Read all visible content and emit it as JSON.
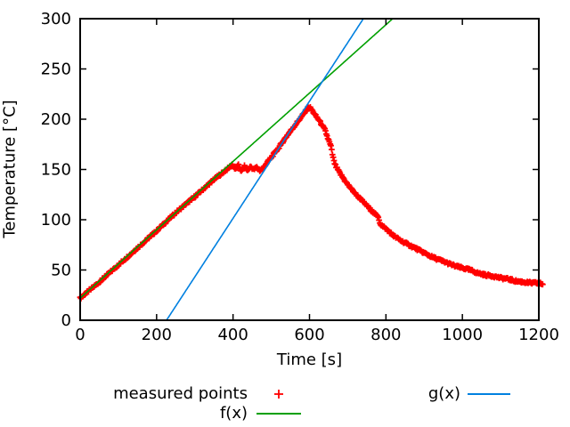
{
  "chart_data": {
    "type": "scatter",
    "title": "",
    "xlabel": "Time [s]",
    "ylabel": "Temperature [°C]",
    "xlim": [
      0,
      1200
    ],
    "ylim": [
      0,
      300
    ],
    "xticks": [
      0,
      200,
      400,
      600,
      800,
      1000,
      1200
    ],
    "yticks": [
      0,
      50,
      100,
      150,
      200,
      250,
      300
    ],
    "grid": false,
    "legend_position": "below-plot",
    "axis_color": "#000000",
    "series": [
      {
        "name": "measured points",
        "type": "points",
        "marker": "plus",
        "color": "#ff0000",
        "sampling_step_s": 2,
        "points": [
          [
            0,
            22
          ],
          [
            50,
            38
          ],
          [
            100,
            55
          ],
          [
            150,
            72
          ],
          [
            200,
            89
          ],
          [
            250,
            107
          ],
          [
            300,
            123
          ],
          [
            350,
            140
          ],
          [
            390,
            152
          ],
          [
            398,
            155
          ],
          [
            406,
            150
          ],
          [
            414,
            154
          ],
          [
            422,
            148
          ],
          [
            430,
            153
          ],
          [
            438,
            149
          ],
          [
            446,
            153
          ],
          [
            454,
            150
          ],
          [
            462,
            152
          ],
          [
            470,
            149
          ],
          [
            478,
            151
          ],
          [
            483,
            154
          ],
          [
            500,
            162
          ],
          [
            520,
            172
          ],
          [
            540,
            183
          ],
          [
            560,
            193
          ],
          [
            580,
            203
          ],
          [
            590,
            208
          ],
          [
            597,
            212
          ],
          [
            603,
            211
          ],
          [
            608,
            208
          ],
          [
            615,
            204
          ],
          [
            625,
            199
          ],
          [
            633,
            194
          ],
          [
            641,
            189
          ],
          [
            648,
            181
          ],
          [
            656,
            173
          ],
          [
            660,
            165
          ],
          [
            664,
            158
          ],
          [
            669,
            153
          ],
          [
            680,
            146
          ],
          [
            700,
            135
          ],
          [
            720,
            126
          ],
          [
            740,
            118
          ],
          [
            760,
            110
          ],
          [
            776,
            104
          ],
          [
            780,
            103
          ],
          [
            785,
            96
          ],
          [
            790,
            94
          ],
          [
            800,
            91
          ],
          [
            820,
            84
          ],
          [
            840,
            79
          ],
          [
            860,
            75
          ],
          [
            880,
            71
          ],
          [
            900,
            67
          ],
          [
            920,
            63
          ],
          [
            940,
            60
          ],
          [
            960,
            57
          ],
          [
            980,
            54
          ],
          [
            1000,
            52
          ],
          [
            1020,
            50
          ],
          [
            1040,
            47
          ],
          [
            1060,
            45
          ],
          [
            1080,
            44
          ],
          [
            1100,
            42
          ],
          [
            1120,
            41
          ],
          [
            1140,
            39
          ],
          [
            1160,
            38
          ],
          [
            1180,
            37
          ],
          [
            1200,
            37
          ],
          [
            1210,
            36
          ]
        ]
      },
      {
        "name": "f(x)",
        "type": "line",
        "color": "#00a000",
        "slope": 0.34,
        "intercept": 22
      },
      {
        "name": "g(x)",
        "type": "line",
        "color": "#0080e0",
        "slope": 0.5825,
        "intercept": -131.6
      }
    ]
  }
}
